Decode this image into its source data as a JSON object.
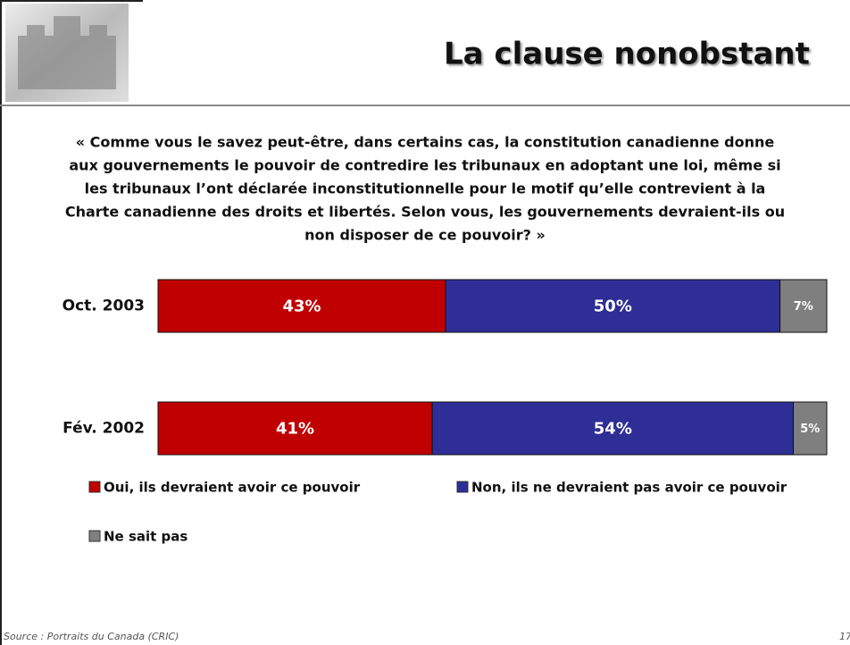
{
  "header": {
    "title": "La clause nonobstant"
  },
  "question": [
    "« Comme vous le savez peut-être, dans certains cas, la constitution canadienne donne",
    "aux gouvernements le pouvoir de contredire les tribunaux en adoptant une loi, même si",
    "les tribunaux l’ont déclarée inconstitutionnelle pour le motif qu’elle contrevient à la",
    "Charte canadienne des droits et libertés. Selon vous, les gouvernements devraient-ils ou",
    "non disposer de ce pouvoir? »"
  ],
  "chart_data": {
    "type": "bar",
    "orientation": "horizontal",
    "stacked": true,
    "categories": [
      "Oct. 2003",
      "Fév. 2002"
    ],
    "series": [
      {
        "name": "Oui, ils devraient avoir ce pouvoir",
        "color": "#c00000",
        "values": [
          43,
          41
        ],
        "value_labels": [
          "43%",
          "41%"
        ]
      },
      {
        "name": "Non, ils ne devraient pas avoir ce pouvoir",
        "color": "#2e2e96",
        "values": [
          50,
          54
        ],
        "value_labels": [
          "50%",
          "54%"
        ]
      },
      {
        "name": "Ne sait pas",
        "color": "#7f7f7f",
        "values": [
          7,
          5
        ],
        "value_labels": [
          "7%",
          "5%"
        ]
      }
    ],
    "xlim": [
      0,
      100
    ]
  },
  "footer": {
    "source": "Source : Portraits du Canada (CRIC)",
    "page": "17"
  }
}
